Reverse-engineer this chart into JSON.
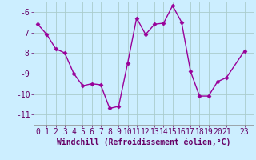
{
  "x": [
    0,
    1,
    2,
    3,
    4,
    5,
    6,
    7,
    8,
    9,
    10,
    11,
    12,
    13,
    14,
    15,
    16,
    17,
    18,
    19,
    20,
    21,
    23
  ],
  "y": [
    -6.6,
    -7.1,
    -7.8,
    -8.0,
    -9.0,
    -9.6,
    -9.5,
    -9.55,
    -10.7,
    -10.6,
    -8.5,
    -6.3,
    -7.1,
    -6.6,
    -6.55,
    -5.7,
    -6.5,
    -8.9,
    -10.1,
    -10.1,
    -9.4,
    -9.2,
    -7.9
  ],
  "line_color": "#990099",
  "marker": "D",
  "markersize": 2.5,
  "linewidth": 1.0,
  "bg_color": "#cceeff",
  "grid_color": "#aacccc",
  "xlabel": "Windchill (Refroidissement éolien,°C)",
  "xlabel_fontsize": 7,
  "tick_fontsize": 7,
  "ylim": [
    -11.5,
    -5.5
  ],
  "yticks": [
    -11,
    -10,
    -9,
    -8,
    -7,
    -6
  ],
  "xlim": [
    -0.5,
    24.0
  ],
  "xticks": [
    0,
    1,
    2,
    3,
    4,
    5,
    6,
    7,
    8,
    9,
    10,
    11,
    12,
    13,
    14,
    15,
    16,
    17,
    18,
    19,
    20,
    21,
    23
  ]
}
